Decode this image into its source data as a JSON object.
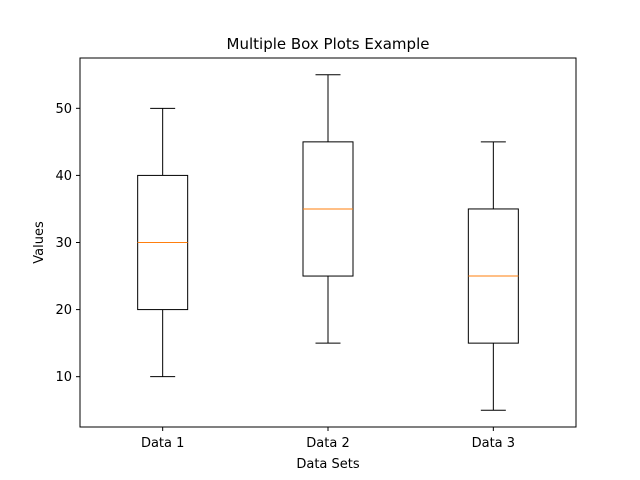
{
  "chart_data": {
    "type": "box",
    "title": "Multiple Box Plots Example",
    "xlabel": "Data Sets",
    "ylabel": "Values",
    "ylim": [
      2.5,
      57.5
    ],
    "yticks": [
      10,
      20,
      30,
      40,
      50
    ],
    "yticks_text": [
      "10",
      "20",
      "30",
      "40",
      "50"
    ],
    "grid": false,
    "median_color": "#ff7f0e",
    "box_color": "#000000",
    "categories": [
      "Data 1",
      "Data 2",
      "Data 3"
    ],
    "series": [
      {
        "min": 10,
        "q1": 20,
        "median": 30,
        "q3": 40,
        "max": 50
      },
      {
        "min": 15,
        "q1": 25,
        "median": 35,
        "q3": 45,
        "max": 55
      },
      {
        "min": 5,
        "q1": 15,
        "median": 25,
        "q3": 35,
        "max": 45
      }
    ]
  }
}
